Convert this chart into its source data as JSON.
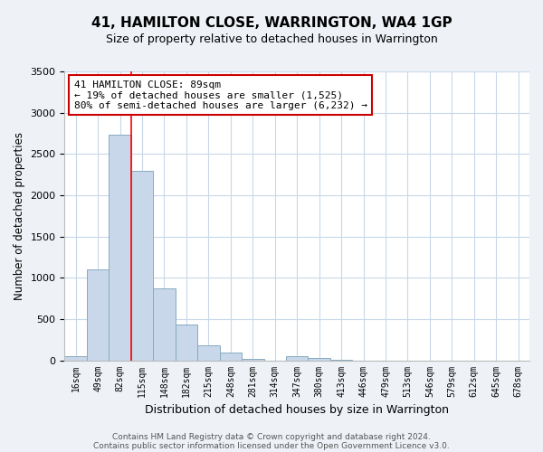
{
  "title1": "41, HAMILTON CLOSE, WARRINGTON, WA4 1GP",
  "title2": "Size of property relative to detached houses in Warrington",
  "xlabel": "Distribution of detached houses by size in Warrington",
  "ylabel": "Number of detached properties",
  "bar_labels": [
    "16sqm",
    "49sqm",
    "82sqm",
    "115sqm",
    "148sqm",
    "182sqm",
    "215sqm",
    "248sqm",
    "281sqm",
    "314sqm",
    "347sqm",
    "380sqm",
    "413sqm",
    "446sqm",
    "479sqm",
    "513sqm",
    "546sqm",
    "579sqm",
    "612sqm",
    "645sqm",
    "678sqm"
  ],
  "bar_values": [
    50,
    1100,
    2730,
    2290,
    870,
    430,
    185,
    90,
    20,
    0,
    45,
    25,
    5,
    0,
    0,
    0,
    0,
    0,
    0,
    0,
    0
  ],
  "bar_color": "#c8d8ea",
  "bar_edge_color": "#88aabf",
  "vline_color": "red",
  "annotation_text": "41 HAMILTON CLOSE: 89sqm\n← 19% of detached houses are smaller (1,525)\n80% of semi-detached houses are larger (6,232) →",
  "annotation_box_facecolor": "white",
  "annotation_box_edgecolor": "#cc0000",
  "ylim": [
    0,
    3500
  ],
  "yticks": [
    0,
    500,
    1000,
    1500,
    2000,
    2500,
    3000,
    3500
  ],
  "footer1": "Contains HM Land Registry data © Crown copyright and database right 2024.",
  "footer2": "Contains public sector information licensed under the Open Government Licence v3.0.",
  "bg_color": "#eef2f7",
  "plot_bg_color": "#ffffff",
  "grid_color": "#c8d8e8",
  "vline_x_index": 2
}
